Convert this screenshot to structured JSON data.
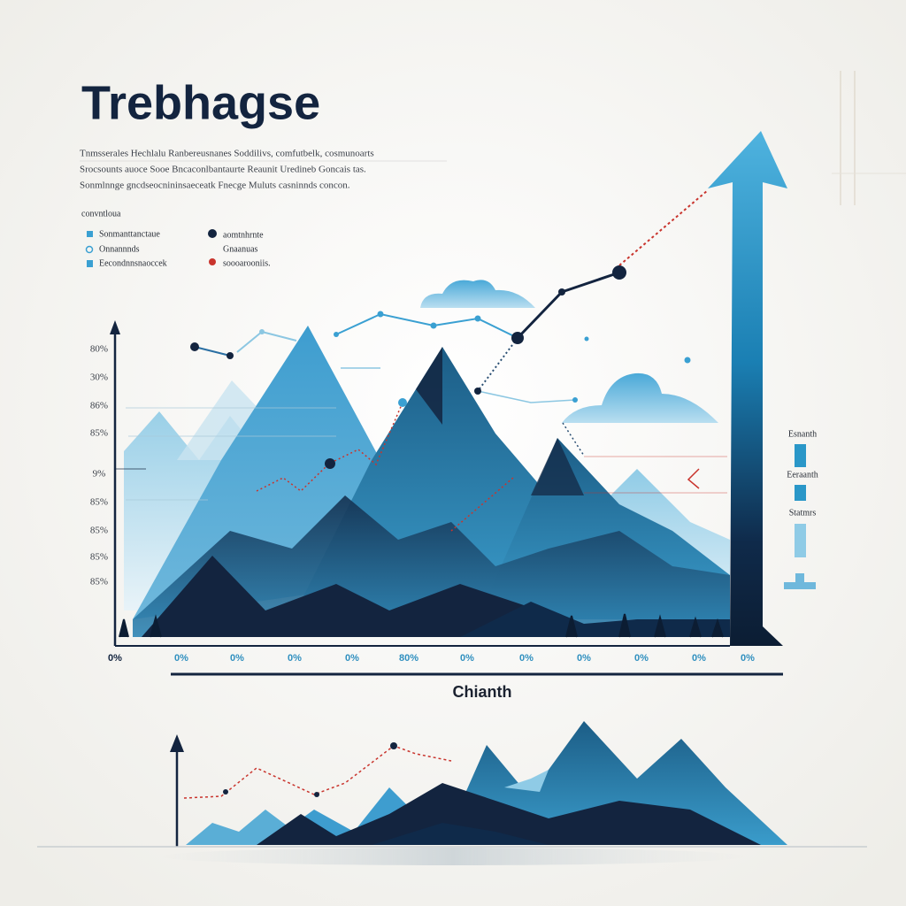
{
  "header": {
    "title": "Trebhagse",
    "description": [
      "Tnmsserales Hechlalu Ranbereusnanes Soddilivs, comfutbelk, cosmunoarts",
      "Srocsounts auoce Sooe Bncaconlbantaurte Reaunit Uredineb Goncais tas.",
      "Sonmlnnge gncdseocnininsaeceatk Fnecge Muluts casninnds concon."
    ]
  },
  "legend": {
    "heading": "convntloua",
    "items": [
      "Sonmanttanctaue",
      "Onnannnds",
      "Eecondnnsnaoccek",
      "aomtnhrnte",
      "Gnaanuas",
      "soooarooniis."
    ]
  },
  "main_chart": {
    "y_labels": [
      "80%",
      "30%",
      "86%",
      "85%",
      "9%",
      "85%",
      "85%",
      "85%",
      "85%"
    ],
    "x_labels": [
      "0%",
      "0%",
      "0%",
      "0%",
      "0%",
      "80%",
      "0%",
      "0%",
      "0%",
      "0%",
      "0%",
      "0%"
    ],
    "x_title": "Chianth"
  },
  "side_legend": [
    "Esnanth",
    "Eeraanth",
    "Statmrs"
  ]
}
